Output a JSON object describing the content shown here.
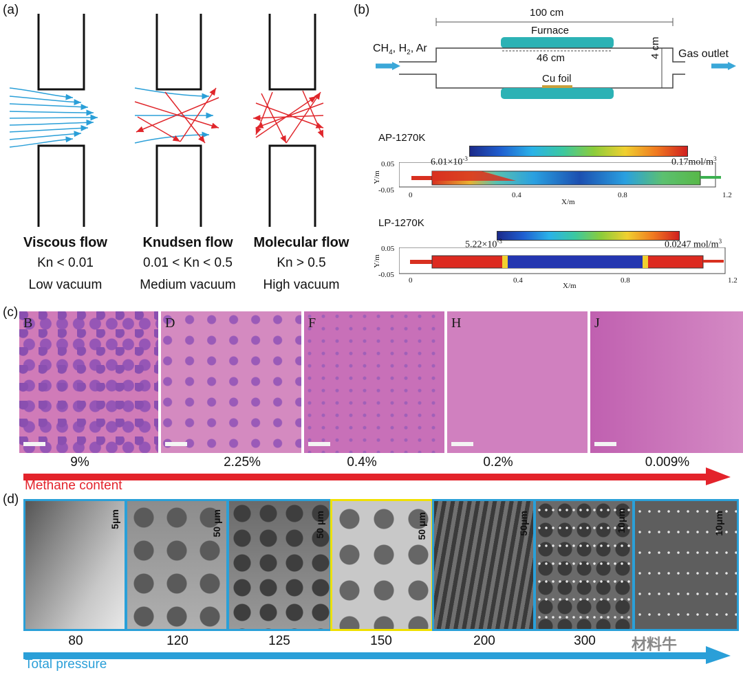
{
  "panel_a": {
    "label": "(a)",
    "flows": [
      {
        "name": "Viscous flow",
        "kn": "Kn < 0.01",
        "vacuum": "Low vacuum"
      },
      {
        "name": "Knudsen flow",
        "kn": "0.01 < Kn < 0.5",
        "vacuum": "Medium vacuum"
      },
      {
        "name": "Molecular flow",
        "kn": "Kn > 0.5",
        "vacuum": "High vacuum"
      }
    ]
  },
  "panel_b": {
    "label": "(b)",
    "total_length": "100 cm",
    "furnace": "Furnace",
    "furnace_length": "46 cm",
    "gas_inlet_prefix": "CH",
    "gas_inlet_sub1": "4",
    "gas_inlet_mid": ", H",
    "gas_inlet_sub2": "2",
    "gas_inlet_suffix": ", Ar",
    "gas_outlet": "Gas outlet",
    "cu_foil": "Cu foil",
    "diameter": "4 cm",
    "simulations": [
      {
        "title": "AP-1270K",
        "min_label": "6.01×10",
        "min_exp": "-3",
        "max_label": "0.17mol/m",
        "max_exp": "3",
        "y_label": "Y/m",
        "y_ticks": [
          "0.05",
          "-0.05"
        ],
        "x_label": "X/m",
        "x_ticks": [
          "0",
          "0.4",
          "0.8",
          "1.2"
        ]
      },
      {
        "title": "LP-1270K",
        "min_label": "5.22×10",
        "min_exp": "-3",
        "max_label": "0.0247 mol/m",
        "max_exp": "3",
        "y_label": "Y/m",
        "y_ticks": [
          "0.05",
          "-0.05"
        ],
        "x_label": "X/m",
        "x_ticks": [
          "0",
          "0.4",
          "0.8",
          "1.2"
        ]
      }
    ]
  },
  "panel_c": {
    "label": "(c)",
    "images": [
      {
        "letter": "B",
        "methane": "9%"
      },
      {
        "letter": "D",
        "methane": "2.25%"
      },
      {
        "letter": "F",
        "methane": "0.4%"
      },
      {
        "letter": "H",
        "methane": "0.2%"
      },
      {
        "letter": "J",
        "methane": "0.009%"
      }
    ],
    "arrow_label": "Methane content",
    "arrow_color": "#e3232b"
  },
  "panel_d": {
    "label": "(d)",
    "images": [
      {
        "pressure": "80",
        "scale": "5μm"
      },
      {
        "pressure": "120",
        "scale": "50 μm"
      },
      {
        "pressure": "125",
        "scale": "50 μm"
      },
      {
        "pressure": "150",
        "scale": "50 μm"
      },
      {
        "pressure": "200",
        "scale": "50μm"
      },
      {
        "pressure": "300",
        "scale": "10μm"
      },
      {
        "pressure": "",
        "scale": "10μm"
      }
    ],
    "arrow_label": "Total pressure",
    "arrow_color": "#2a9fd8",
    "watermark": "材料牛"
  }
}
